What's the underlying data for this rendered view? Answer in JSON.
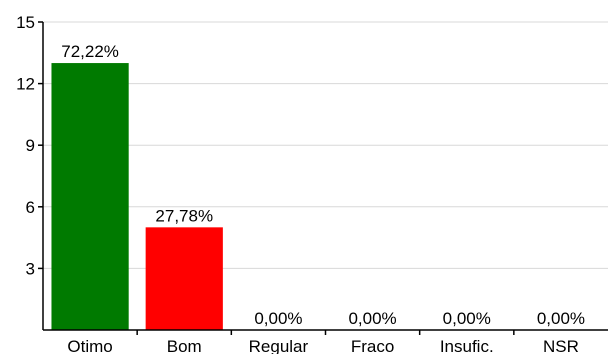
{
  "chart_data": {
    "type": "bar",
    "categories": [
      "Otimo",
      "Bom",
      "Regular",
      "Fraco",
      "Insufic.",
      "NSR"
    ],
    "values": [
      13,
      5,
      0,
      0,
      0,
      0
    ],
    "data_labels": [
      "72,22%",
      "27,78%",
      "0,00%",
      "0,00%",
      "0,00%",
      "0,00%"
    ],
    "colors": [
      "#007a00",
      "#ff0000",
      "#007a00",
      "#007a00",
      "#007a00",
      "#007a00"
    ],
    "title": "",
    "xlabel": "",
    "ylabel": "",
    "ylim": [
      0,
      15
    ],
    "yticks": [
      3,
      6,
      9,
      12,
      15
    ],
    "grid": "horizontal",
    "legend": "none"
  }
}
